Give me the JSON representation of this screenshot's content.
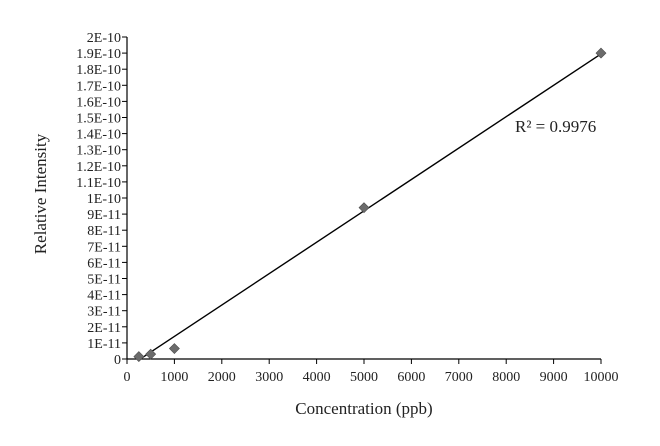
{
  "chart_data": {
    "type": "scatter",
    "title": "",
    "xlabel": "Concentration (ppb)",
    "ylabel": "Relative Intensity",
    "xlim": [
      0,
      10000
    ],
    "ylim": [
      0,
      2e-10
    ],
    "x_ticks": [
      {
        "value": 0,
        "label": "0"
      },
      {
        "value": 1000,
        "label": "1000"
      },
      {
        "value": 2000,
        "label": "2000"
      },
      {
        "value": 3000,
        "label": "3000"
      },
      {
        "value": 4000,
        "label": "4000"
      },
      {
        "value": 5000,
        "label": "5000"
      },
      {
        "value": 6000,
        "label": "6000"
      },
      {
        "value": 7000,
        "label": "7000"
      },
      {
        "value": 8000,
        "label": "8000"
      },
      {
        "value": 9000,
        "label": "9000"
      },
      {
        "value": 10000,
        "label": "10000"
      }
    ],
    "y_ticks": [
      {
        "value": 0,
        "label": "0"
      },
      {
        "value": 1e-11,
        "label": "1E-11"
      },
      {
        "value": 2e-11,
        "label": "2E-11"
      },
      {
        "value": 3e-11,
        "label": "3E-11"
      },
      {
        "value": 4e-11,
        "label": "4E-11"
      },
      {
        "value": 5e-11,
        "label": "5E-11"
      },
      {
        "value": 6e-11,
        "label": "6E-11"
      },
      {
        "value": 7e-11,
        "label": "7E-11"
      },
      {
        "value": 8e-11,
        "label": "8E-11"
      },
      {
        "value": 9e-11,
        "label": "9E-11"
      },
      {
        "value": 1e-10,
        "label": "1E-10"
      },
      {
        "value": 1.1e-10,
        "label": "1.1E-10"
      },
      {
        "value": 1.2e-10,
        "label": "1.2E-10"
      },
      {
        "value": 1.3e-10,
        "label": "1.3E-10"
      },
      {
        "value": 1.4e-10,
        "label": "1.4E-10"
      },
      {
        "value": 1.5e-10,
        "label": "1.5E-10"
      },
      {
        "value": 1.6e-10,
        "label": "1.6E-10"
      },
      {
        "value": 1.7e-10,
        "label": "1.7E-10"
      },
      {
        "value": 1.8e-10,
        "label": "1.8E-10"
      },
      {
        "value": 1.9e-10,
        "label": "1.9E-10"
      },
      {
        "value": 2e-10,
        "label": "2E-10"
      }
    ],
    "series": [
      {
        "points": [
          {
            "x": 250,
            "y": 1.5e-12
          },
          {
            "x": 500,
            "y": 3e-12
          },
          {
            "x": 1000,
            "y": 6.5e-12
          },
          {
            "x": 5000,
            "y": 9.4e-11
          },
          {
            "x": 10000,
            "y": 1.9e-10
          }
        ]
      }
    ],
    "trendline": {
      "type": "linear",
      "from": {
        "x": 250,
        "y": -6e-13
      },
      "to": {
        "x": 10000,
        "y": 1.895e-10
      }
    },
    "annotation": "R² = 0.9976",
    "grid": false,
    "legend": "none",
    "colors": {
      "marker": "#6b6b6b",
      "line": "#000000",
      "axis": "#000000",
      "text": "#222222"
    }
  }
}
